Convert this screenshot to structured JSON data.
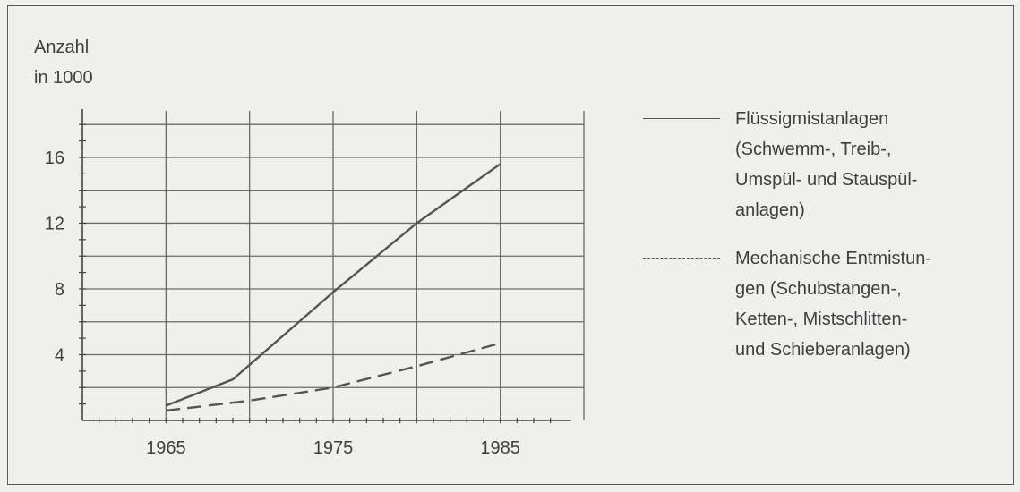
{
  "chart_data": {
    "type": "line",
    "title": "",
    "xlabel": "",
    "ylabel": "Anzahl\nin 1000",
    "x_ticks": [
      "1965",
      "1975",
      "1985"
    ],
    "y_ticks": [
      "4",
      "8",
      "12",
      "16"
    ],
    "xlim": [
      1960,
      1990
    ],
    "ylim": [
      0,
      18.5
    ],
    "grid": true,
    "legend_position": "right",
    "series": [
      {
        "name": "Flüssigmistanlagen\n(Schwemm-, Treib-,\nUmspül- und Stauspül-\nanlagen)",
        "style": "solid",
        "x": [
          1965,
          1969,
          1975,
          1980,
          1985
        ],
        "y": [
          0.9,
          2.5,
          7.8,
          12.0,
          15.6
        ]
      },
      {
        "name": "Mechanische Entmistun-\ngen (Schubstangen-,\nKetten-, Mistschlitten-\nund Schieberanlagen)",
        "style": "dashed",
        "x": [
          1965,
          1970,
          1975,
          1980,
          1985
        ],
        "y": [
          0.6,
          1.2,
          2.0,
          3.3,
          4.7
        ]
      }
    ]
  },
  "colors": {
    "line": "#555555",
    "grid": "#6a6a6a",
    "background": "#efefed"
  }
}
